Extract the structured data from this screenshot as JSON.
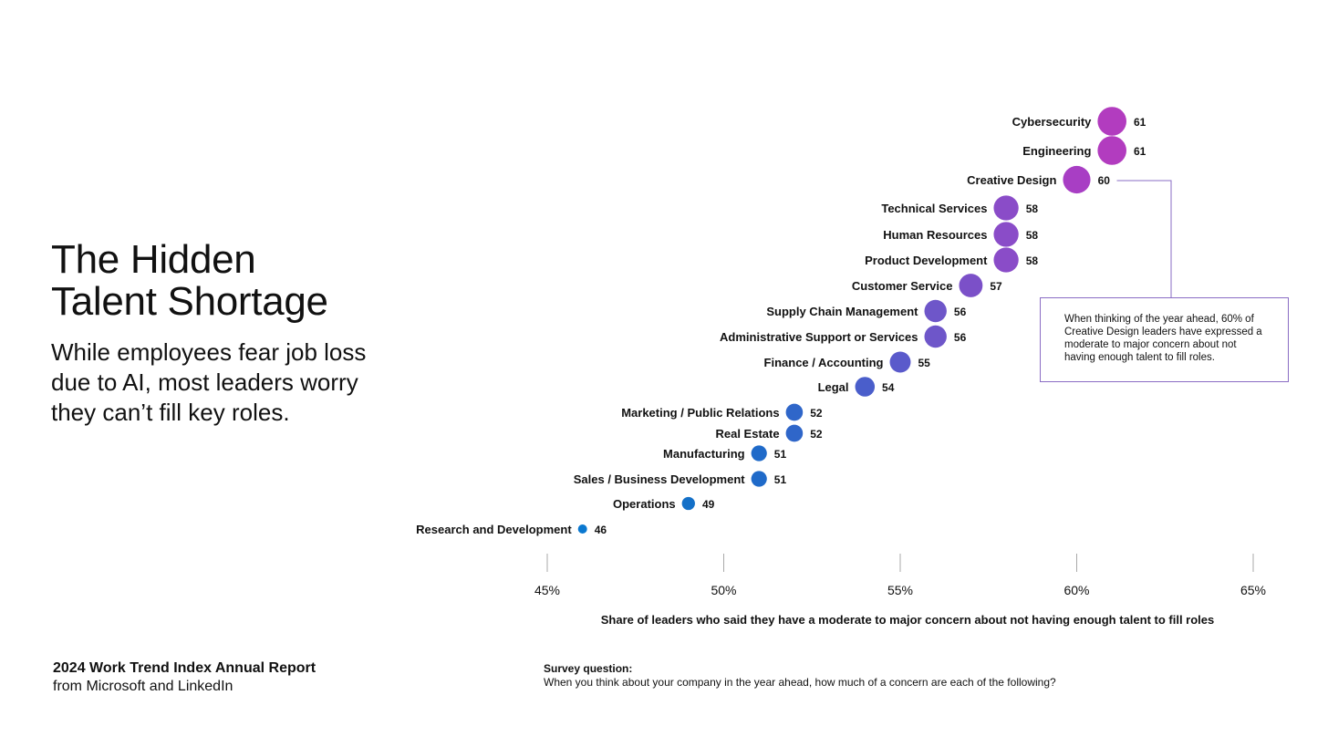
{
  "title_line1": "The Hidden",
  "title_line2": "Talent Shortage",
  "subtitle": "While employees fear job loss due to AI, most leaders worry they can’t fill key roles.",
  "footer": {
    "report_title": "2024 Work Trend Index Annual Report",
    "report_sub": "from Microsoft and LinkedIn",
    "survey_heading": "Survey question:",
    "survey_text": "When you think about your company in the year ahead, how much of a concern are each of the following?"
  },
  "callout": {
    "text": "When thinking of the year ahead, 60% of Creative Design leaders have expressed a moderate to major concern about not having enough talent to fill roles."
  },
  "chart_data": {
    "type": "scatter",
    "xlabel": "Share of leaders who said they have a moderate to major concern about not having enough talent to fill roles",
    "xlim": [
      45,
      65
    ],
    "x_ticks": [
      "45%",
      "50%",
      "55%",
      "60%",
      "65%"
    ],
    "x_tick_values": [
      45,
      50,
      55,
      60,
      65
    ],
    "points": [
      {
        "label": "Cybersecurity",
        "value": 61,
        "color": "#b23cbf"
      },
      {
        "label": "Engineering",
        "value": 61,
        "color": "#b23cbf"
      },
      {
        "label": "Creative Design",
        "value": 60,
        "color": "#a83ec4"
      },
      {
        "label": "Technical Services",
        "value": 58,
        "color": "#8a4cc8"
      },
      {
        "label": "Human Resources",
        "value": 58,
        "color": "#8a4cc8"
      },
      {
        "label": "Product Development",
        "value": 58,
        "color": "#8a4cc8"
      },
      {
        "label": "Customer Service",
        "value": 57,
        "color": "#7b50c8"
      },
      {
        "label": "Supply Chain Management",
        "value": 56,
        "color": "#6e56c9"
      },
      {
        "label": "Administrative Support or Services",
        "value": 56,
        "color": "#6e56c9"
      },
      {
        "label": "Finance / Accounting",
        "value": 55,
        "color": "#5a5acb"
      },
      {
        "label": "Legal",
        "value": 54,
        "color": "#4a5ecb"
      },
      {
        "label": "Marketing / Public Relations",
        "value": 52,
        "color": "#2f66c9"
      },
      {
        "label": "Real Estate",
        "value": 52,
        "color": "#2f66c9"
      },
      {
        "label": "Manufacturing",
        "value": 51,
        "color": "#1f6ac9"
      },
      {
        "label": "Sales / Business Development",
        "value": 51,
        "color": "#1f6ac9"
      },
      {
        "label": "Operations",
        "value": 49,
        "color": "#1470c8"
      },
      {
        "label": "Research and Development",
        "value": 46,
        "color": "#0a78d0"
      }
    ],
    "callout_target": "Creative Design",
    "callout_line_color": "#8a6cc4"
  }
}
